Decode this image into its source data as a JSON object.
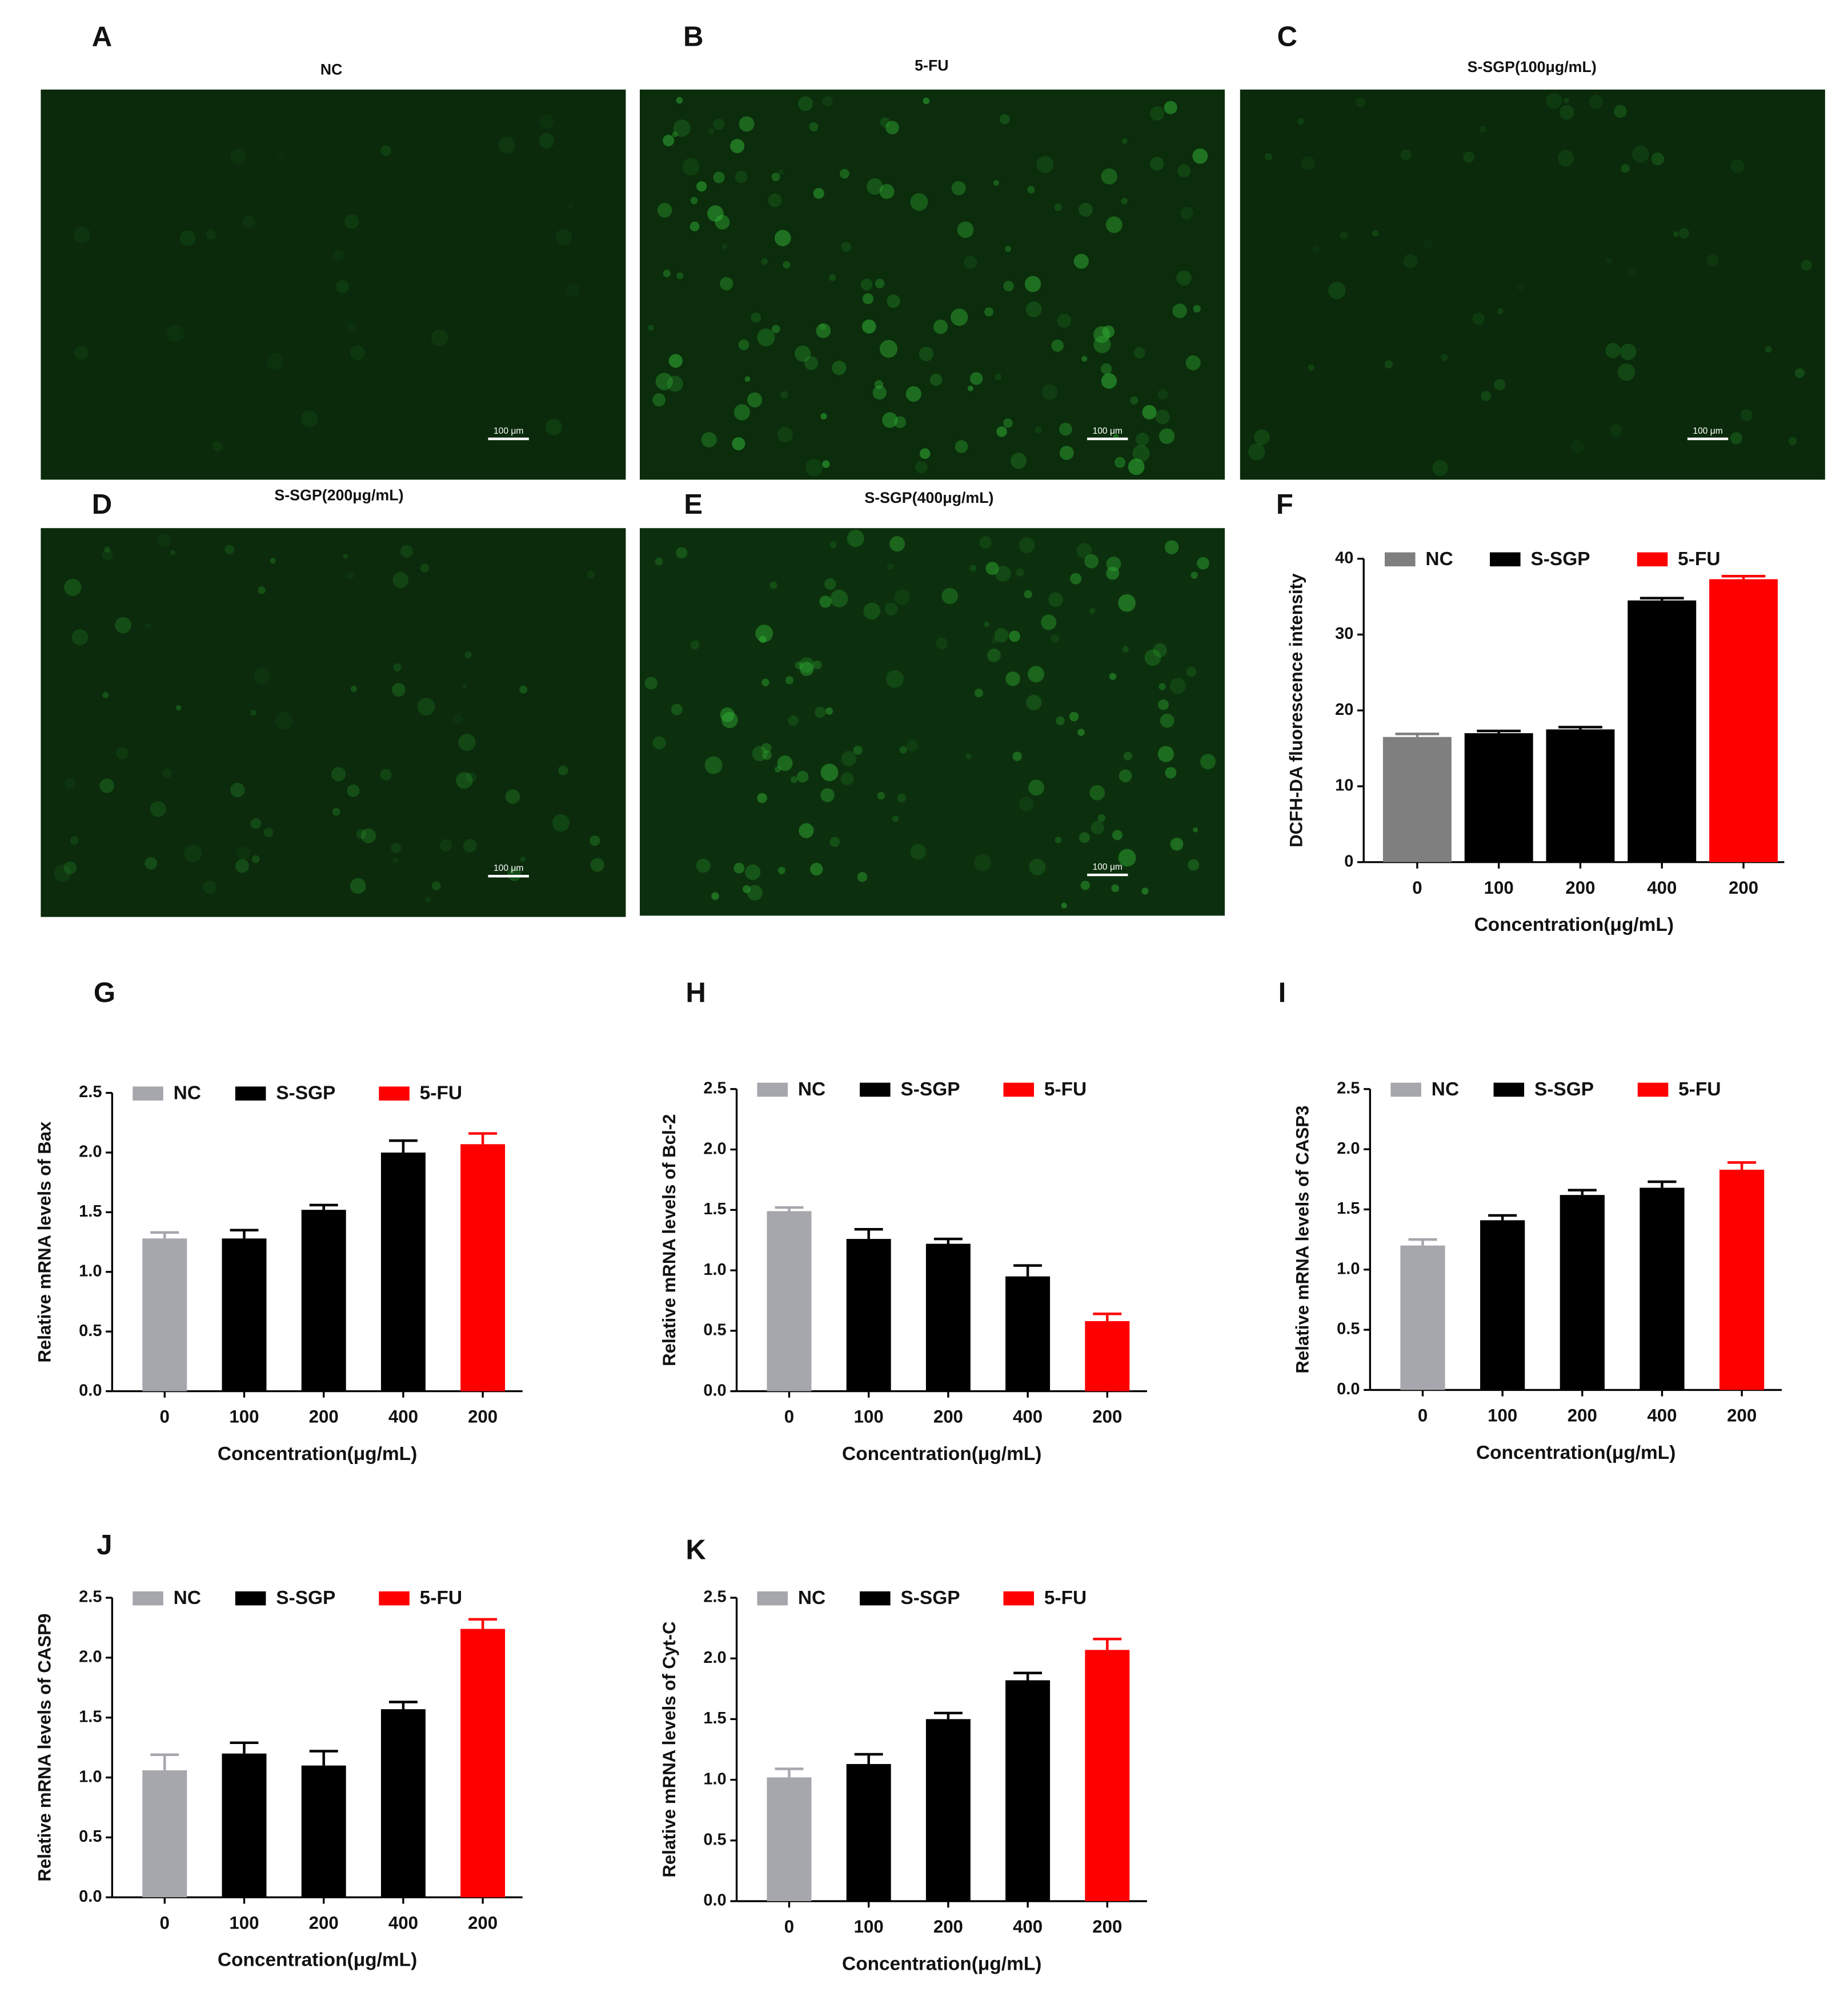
{
  "images": [
    {
      "letter": "A",
      "title": "NC",
      "scale_bar": "100 μm"
    },
    {
      "letter": "B",
      "title": "5-FU",
      "scale_bar": "100 μm"
    },
    {
      "letter": "C",
      "title": "S-SGP(100μg/mL)",
      "scale_bar": "100 μm"
    },
    {
      "letter": "D",
      "title": "S-SGP(200μg/mL)",
      "scale_bar": "100 μm"
    },
    {
      "letter": "E",
      "title": "S-SGP(400μg/mL)",
      "scale_bar": "100 μm"
    }
  ],
  "chart_data": [
    {
      "type": "bar",
      "panel": "F",
      "ylabel": "DCFH-DA fluorescence intensity",
      "xlabel": "Concentration(μg/mL)",
      "categories": [
        "0",
        "100",
        "200",
        "400",
        "200"
      ],
      "series": [
        {
          "name": "NC",
          "color": "#7f7f7f",
          "values": [
            16.5,
            null,
            null,
            null,
            null
          ],
          "errors": [
            0.4,
            null,
            null,
            null,
            null
          ]
        },
        {
          "name": "S-SGP",
          "color": "#000000",
          "values": [
            null,
            17.0,
            17.5,
            34.5,
            null
          ],
          "errors": [
            null,
            0.3,
            0.3,
            0.3,
            null
          ]
        },
        {
          "name": "5-FU",
          "color": "#ff0000",
          "values": [
            null,
            null,
            null,
            null,
            37.3
          ],
          "errors": [
            null,
            null,
            null,
            null,
            0.4
          ]
        }
      ],
      "ylim": [
        0,
        40
      ],
      "yticks": [
        0,
        10,
        20,
        30,
        40
      ]
    },
    {
      "type": "bar",
      "panel": "G",
      "ylabel": "Relative mRNA levels of Bax",
      "xlabel": "Concentration(μg/mL)",
      "categories": [
        "0",
        "100",
        "200",
        "400",
        "200"
      ],
      "series": [
        {
          "name": "NC",
          "color": "#a6a6ad",
          "values": [
            1.28,
            null,
            null,
            null,
            null
          ],
          "errors": [
            0.05,
            null,
            null,
            null,
            null
          ]
        },
        {
          "name": "S-SGP",
          "color": "#000000",
          "values": [
            null,
            1.28,
            1.52,
            2.0,
            null
          ],
          "errors": [
            null,
            0.07,
            0.04,
            0.1,
            null
          ]
        },
        {
          "name": "5-FU",
          "color": "#ff0000",
          "values": [
            null,
            null,
            null,
            null,
            2.07
          ],
          "errors": [
            null,
            null,
            null,
            null,
            0.09
          ]
        }
      ],
      "ylim": [
        0,
        2.5
      ],
      "yticks": [
        {
          "value": 0,
          "label": "0.0"
        },
        0.5,
        {
          "value": 1,
          "label": "1.0"
        },
        1.5,
        {
          "value": 2,
          "label": "2.0"
        },
        2.5
      ]
    },
    {
      "type": "bar",
      "panel": "H",
      "ylabel": "Relative mRNA levels of Bcl-2",
      "xlabel": "Concentration(μg/mL)",
      "categories": [
        "0",
        "100",
        "200",
        "400",
        "200"
      ],
      "series": [
        {
          "name": "NC",
          "color": "#a6a6ad",
          "values": [
            1.49,
            null,
            null,
            null,
            null
          ],
          "errors": [
            0.03,
            null,
            null,
            null,
            null
          ]
        },
        {
          "name": "S-SGP",
          "color": "#000000",
          "values": [
            null,
            1.26,
            1.22,
            0.95,
            null
          ],
          "errors": [
            null,
            0.08,
            0.04,
            0.09,
            null
          ]
        },
        {
          "name": "5-FU",
          "color": "#ff0000",
          "values": [
            null,
            null,
            null,
            null,
            0.58
          ],
          "errors": [
            null,
            null,
            null,
            null,
            0.06
          ]
        }
      ],
      "ylim": [
        0,
        2.5
      ],
      "yticks": [
        {
          "value": 0,
          "label": "0.0"
        },
        0.5,
        {
          "value": 1,
          "label": "1.0"
        },
        1.5,
        {
          "value": 2,
          "label": "2.0"
        },
        2.5
      ]
    },
    {
      "type": "bar",
      "panel": "I",
      "ylabel": "Relative mRNA levels of CASP3",
      "xlabel": "Concentration(μg/mL)",
      "categories": [
        "0",
        "100",
        "200",
        "400",
        "200"
      ],
      "series": [
        {
          "name": "NC",
          "color": "#a6a6ad",
          "values": [
            1.2,
            null,
            null,
            null,
            null
          ],
          "errors": [
            0.05,
            null,
            null,
            null,
            null
          ]
        },
        {
          "name": "S-SGP",
          "color": "#000000",
          "values": [
            null,
            1.41,
            1.62,
            1.68,
            null
          ],
          "errors": [
            null,
            0.04,
            0.04,
            0.05,
            null
          ]
        },
        {
          "name": "5-FU",
          "color": "#ff0000",
          "values": [
            null,
            null,
            null,
            null,
            1.83
          ],
          "errors": [
            null,
            null,
            null,
            null,
            0.06
          ]
        }
      ],
      "ylim": [
        0,
        2.5
      ],
      "yticks": [
        {
          "value": 0,
          "label": "0.0"
        },
        0.5,
        {
          "value": 1,
          "label": "1.0"
        },
        1.5,
        {
          "value": 2,
          "label": "2.0"
        },
        2.5
      ]
    },
    {
      "type": "bar",
      "panel": "J",
      "ylabel": "Relative mRNA levels of CASP9",
      "xlabel": "Concentration(μg/mL)",
      "categories": [
        "0",
        "100",
        "200",
        "400",
        "200"
      ],
      "series": [
        {
          "name": "NC",
          "color": "#a6a6ad",
          "values": [
            1.06,
            null,
            null,
            null,
            null
          ],
          "errors": [
            0.13,
            null,
            null,
            null,
            null
          ]
        },
        {
          "name": "S-SGP",
          "color": "#000000",
          "values": [
            null,
            1.2,
            1.1,
            1.57,
            null
          ],
          "errors": [
            null,
            0.09,
            0.12,
            0.06,
            null
          ]
        },
        {
          "name": "5-FU",
          "color": "#ff0000",
          "values": [
            null,
            null,
            null,
            null,
            2.24
          ],
          "errors": [
            null,
            null,
            null,
            null,
            0.08
          ]
        }
      ],
      "ylim": [
        0,
        2.5
      ],
      "yticks": [
        {
          "value": 0,
          "label": "0.0"
        },
        0.5,
        {
          "value": 1,
          "label": "1.0"
        },
        1.5,
        {
          "value": 2,
          "label": "2.0"
        },
        2.5
      ]
    },
    {
      "type": "bar",
      "panel": "K",
      "ylabel": "Relative mRNA levels of Cyt-C",
      "xlabel": "Concentration(μg/mL)",
      "categories": [
        "0",
        "100",
        "200",
        "400",
        "200"
      ],
      "series": [
        {
          "name": "NC",
          "color": "#a6a6ad",
          "values": [
            1.02,
            null,
            null,
            null,
            null
          ],
          "errors": [
            0.07,
            null,
            null,
            null,
            null
          ]
        },
        {
          "name": "S-SGP",
          "color": "#000000",
          "values": [
            null,
            1.13,
            1.5,
            1.82,
            null
          ],
          "errors": [
            null,
            0.08,
            0.05,
            0.06,
            null
          ]
        },
        {
          "name": "5-FU",
          "color": "#ff0000",
          "values": [
            null,
            null,
            null,
            null,
            2.07
          ],
          "errors": [
            null,
            null,
            null,
            null,
            0.09
          ]
        }
      ],
      "ylim": [
        0,
        2.5
      ],
      "yticks": [
        {
          "value": 0,
          "label": "0.0"
        },
        0.5,
        {
          "value": 1,
          "label": "1.0"
        },
        1.5,
        {
          "value": 2,
          "label": "2.0"
        },
        2.5
      ]
    }
  ]
}
